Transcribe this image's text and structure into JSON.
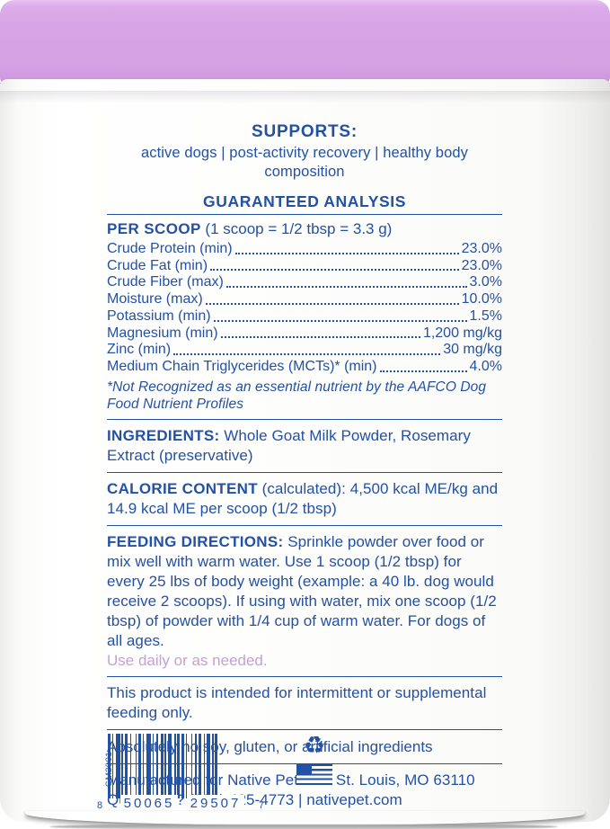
{
  "colors": {
    "text_blue": "#2351a3",
    "lid_lavender": "#d6a2e4",
    "lavender_text": "#c59fd6",
    "body_white": "#fdfdfc"
  },
  "supports": {
    "title": "SUPPORTS:",
    "tagline": "active dogs | post-activity recovery | healthy body composition"
  },
  "analysis": {
    "heading": "GUARANTEED ANALYSIS",
    "per_scoop_label": "PER SCOOP",
    "per_scoop_detail": "(1 scoop = 1/2 tbsp = 3.3 g)",
    "rows": [
      {
        "label": "Crude Protein (min)",
        "value": "23.0%"
      },
      {
        "label": "Crude Fat (min)",
        "value": "23.0%"
      },
      {
        "label": "Crude Fiber (max)",
        "value": "3.0%"
      },
      {
        "label": "Moisture (max)",
        "value": "10.0%"
      },
      {
        "label": "Potassium (min)",
        "value": "1.5%"
      },
      {
        "label": "Magnesium (min)",
        "value": "1,200 mg/kg"
      },
      {
        "label": "Zinc (min)",
        "value": "30 mg/kg"
      },
      {
        "label": "Medium Chain Triglycerides (MCTs)* (min)",
        "value": "4.0%"
      }
    ],
    "footnote": "*Not Recognized as an essential nutrient by the AAFCO Dog Food Nutrient Profiles"
  },
  "ingredients": {
    "label": "INGREDIENTS:",
    "text": "Whole Goat Milk Powder, Rosemary Extract (preservative)"
  },
  "calories": {
    "label": "CALORIE CONTENT",
    "text": "(calculated): 4,500 kcal ME/kg and 14.9 kcal ME per scoop (1/2 tbsp)"
  },
  "feeding": {
    "label": "FEEDING DIRECTIONS:",
    "text": "Sprinkle powder over food or mix well with warm water. Use 1 scoop (1/2 tbsp) for every 25 lbs of body weight (example: a 40 lb. dog would receive 2 scoops). If using with water, mix one scoop (1/2 tbsp) of powder with 1/4 cup of warm water. For dogs of all ages.",
    "note": "Use daily or as needed."
  },
  "notices": {
    "intermittent": "This product is intended for intermittent or supplemental feeding only.",
    "no_artificial": "Absolutely no soy, gluten, or artificial ingredients"
  },
  "manufacturer": {
    "line1": "Manufactured for Native Pet Inc., St. Louis, MO 63110",
    "line2": "Questions? (833) 425-4773 | nativepet.com"
  },
  "barcode": {
    "side_code": "GM2001",
    "digit_left": "8",
    "digits_group1": "50065",
    "digits_group2": "29507",
    "digit_right": "7"
  },
  "icons": {
    "recycle_symbol": "♻"
  }
}
